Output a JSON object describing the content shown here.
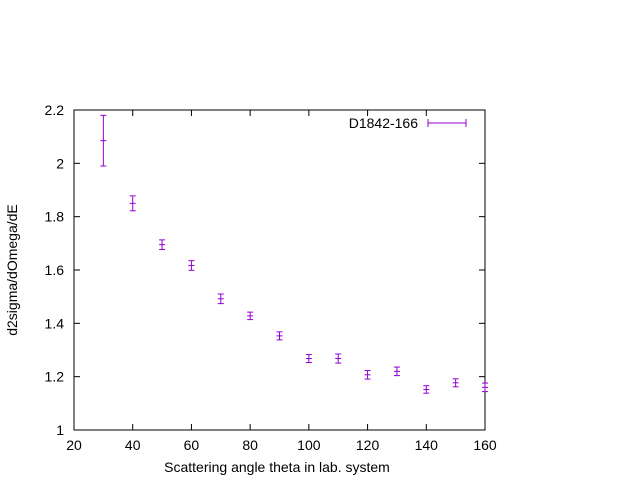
{
  "chart_data": {
    "type": "scatter",
    "title": "",
    "xlabel": "Scattering angle theta in lab. system",
    "ylabel": "d2sigma/dOmega/dE",
    "xlim": [
      20,
      160
    ],
    "ylim": [
      1,
      2.2
    ],
    "xticks": [
      "20",
      "40",
      "60",
      "80",
      "100",
      "120",
      "140",
      "160"
    ],
    "yticks": [
      "1",
      "1.2",
      "1.4",
      "1.6",
      "1.8",
      "2",
      "2.2"
    ],
    "grid": false,
    "legend_position": "top-right",
    "series": [
      {
        "name": "D1842-166",
        "color": "#9400d3",
        "marker": "errorbar",
        "x": [
          30,
          40,
          50,
          60,
          70,
          80,
          90,
          100,
          110,
          120,
          130,
          140,
          150,
          160
        ],
        "y": [
          2.085,
          1.85,
          1.695,
          1.617,
          1.492,
          1.428,
          1.353,
          1.268,
          1.268,
          1.207,
          1.22,
          1.152,
          1.177,
          1.16
        ],
        "yerr": [
          0.095,
          0.028,
          0.018,
          0.018,
          0.018,
          0.014,
          0.015,
          0.015,
          0.017,
          0.016,
          0.016,
          0.014,
          0.015,
          0.016
        ]
      }
    ]
  }
}
